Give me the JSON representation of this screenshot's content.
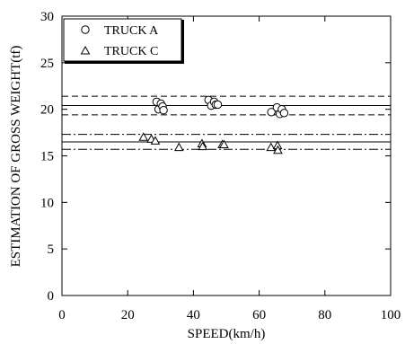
{
  "chart_data": {
    "type": "scatter",
    "xlabel": "SPEED(km/h)",
    "ylabel": "ESTIMATION OF GROSS WEIGHT(tf)",
    "xlim": [
      0,
      100
    ],
    "ylim": [
      0,
      30
    ],
    "xticks": [
      0,
      20,
      40,
      60,
      80,
      100
    ],
    "yticks": [
      0,
      5,
      10,
      15,
      20,
      25,
      30
    ],
    "grid": false,
    "legend_position": "top-left",
    "series": [
      {
        "name": "TRUCK A",
        "marker": "circle",
        "points": [
          {
            "x": 28.8,
            "y": 20.8
          },
          {
            "x": 29.4,
            "y": 20.0
          },
          {
            "x": 30.1,
            "y": 20.6
          },
          {
            "x": 30.6,
            "y": 20.3
          },
          {
            "x": 30.9,
            "y": 19.9
          },
          {
            "x": 44.6,
            "y": 21.0
          },
          {
            "x": 45.4,
            "y": 20.4
          },
          {
            "x": 46.3,
            "y": 20.8
          },
          {
            "x": 46.8,
            "y": 20.5
          },
          {
            "x": 47.4,
            "y": 20.5
          },
          {
            "x": 63.7,
            "y": 19.7
          },
          {
            "x": 65.4,
            "y": 20.2
          },
          {
            "x": 66.3,
            "y": 19.5
          },
          {
            "x": 66.9,
            "y": 20.0
          },
          {
            "x": 67.6,
            "y": 19.6
          }
        ]
      },
      {
        "name": "TRUCK C",
        "marker": "triangle",
        "points": [
          {
            "x": 24.8,
            "y": 17.0
          },
          {
            "x": 27.2,
            "y": 16.8
          },
          {
            "x": 28.4,
            "y": 16.6
          },
          {
            "x": 35.6,
            "y": 15.9
          },
          {
            "x": 42.6,
            "y": 16.3
          },
          {
            "x": 42.8,
            "y": 16.0
          },
          {
            "x": 48.8,
            "y": 16.2
          },
          {
            "x": 49.3,
            "y": 16.2
          },
          {
            "x": 63.6,
            "y": 15.9
          },
          {
            "x": 65.6,
            "y": 16.1
          },
          {
            "x": 65.7,
            "y": 15.6
          }
        ]
      }
    ],
    "reference_lines": [
      {
        "y": 20.4,
        "style": "solid"
      },
      {
        "y": 21.4,
        "style": "dashed"
      },
      {
        "y": 19.4,
        "style": "dashed"
      },
      {
        "y": 16.5,
        "style": "solid"
      },
      {
        "y": 17.3,
        "style": "dashdot"
      },
      {
        "y": 15.7,
        "style": "dashdot"
      }
    ]
  }
}
